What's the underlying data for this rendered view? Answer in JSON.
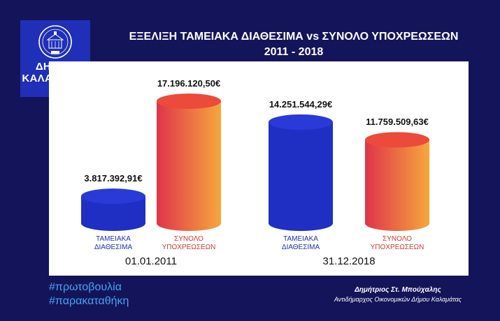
{
  "logo": {
    "line1": "ΔΗΜΟΣ",
    "line2": "ΚΑΛΑΜΑΤΑΣ"
  },
  "header": {
    "title_line1": "ΕΞΕΛΙΞΗ ΤΑΜΕΙΑΚΑ ΔΙΑΘΕΣΙΜΑ vs  ΣΥΝΟΛΟ ΥΠΟΧΡΕΩΣΕΩΝ",
    "title_line2": "2011 - 2018"
  },
  "chart_data": {
    "type": "bar",
    "title": "ΕΞΕΛΙΞΗ ΤΑΜΕΙΑΚΑ ΔΙΑΘΕΣΙΜΑ vs  ΣΥΝΟΛΟ ΥΠΟΧΡΕΩΣΕΩΝ 2011 - 2018",
    "groups": [
      "01.01.2011",
      "31.12.2018"
    ],
    "categories": [
      "ΤΑΜΕΙΑΚΑ ΔΙΑΘΕΣΙΜΑ",
      "ΣΥΝΟΛΟ ΥΠΟΧΡΕΩΣΕΩΝ"
    ],
    "category_lines": [
      [
        "ΤΑΜΕΙΑΚΑ",
        "ΔΙΑΘΕΣΙΜΑ"
      ],
      [
        "ΣΥΝΟΛΟ",
        "ΥΠΟΧΡΕΩΣΕΩΝ"
      ]
    ],
    "values": [
      [
        3817392.91,
        17196120.5
      ],
      [
        14251544.29,
        11759509.63
      ]
    ],
    "value_labels": [
      [
        "3.817.392,91€",
        "17.196.120,50€"
      ],
      [
        "14.251.544,29€",
        "11.759.509,63€"
      ]
    ],
    "colors": {
      "ΤΑΜΕΙΑΚΑ ΔΙΑΘΕΣΙΜΑ": "#1f2fc4",
      "ΣΥΝΟΛΟ ΥΠΟΧΡΕΩΣΕΩΝ": "#ee5a32"
    },
    "gradient_colors": [
      "#e0344a",
      "#f6a73c"
    ],
    "bar_style": "cylinder",
    "grid": false
  },
  "footer": {
    "hashtag1": "#πρωτοβουλία",
    "hashtag2": "#παρακαταθήκη",
    "author_name": "Δημήτριος Στ. Μπούχαλης",
    "author_role": "Αντιδήμαρχος Οικονομικών Δήμου Καλαμάτας"
  }
}
